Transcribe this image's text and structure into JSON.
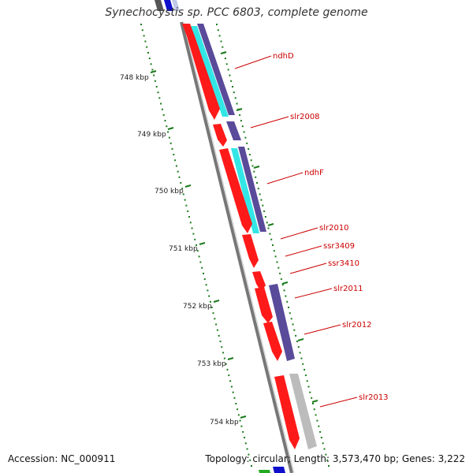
{
  "title": "Synechocystis sp. PCC 6803, complete genome",
  "accession": "Accession: NC_000911",
  "topology": "Topology: circular; Length: 3,573,470 bp; Genes: 3,222",
  "scale_labels": [
    "748 kbp",
    "749 kbp",
    "750 kbp",
    "751 kbp",
    "752 kbp",
    "753 kbp",
    "754 kbp"
  ],
  "gene_labels": [
    "ndhD",
    "slr2008",
    "ndhF",
    "slr2010",
    "ssr3409",
    "ssr3410",
    "slr2011",
    "slr2012",
    "slr2013"
  ],
  "colors": {
    "cds": "#ff1a1a",
    "gene": "#5a4a9a",
    "cyan": "#33e6e6",
    "grey": "#bcbcbc",
    "backbone": "#777777",
    "tick": "#1a7a1a",
    "label": "#cc0000"
  }
}
